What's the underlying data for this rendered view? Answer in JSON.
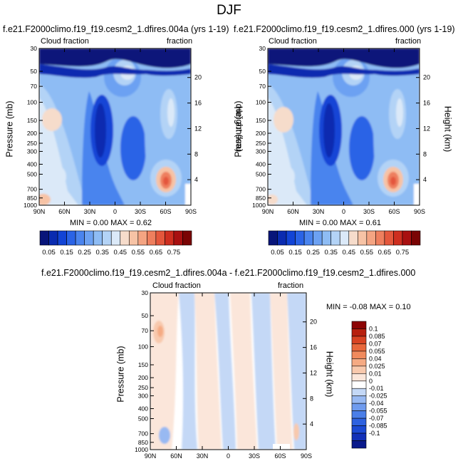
{
  "page": {
    "title": "DJF"
  },
  "colors": {
    "seq": [
      "#08157a",
      "#0a2bb0",
      "#1244d6",
      "#2a63e6",
      "#4a84ee",
      "#6ca1f2",
      "#8ebcf4",
      "#b3d3f6",
      "#dbe9f8",
      "#f6dccb",
      "#f7c3a5",
      "#f4a482",
      "#ee7f5e",
      "#e4573c",
      "#ce2e1f",
      "#a81010",
      "#7a0404"
    ],
    "diff": [
      "#0a1a8c",
      "#1230b8",
      "#1c4ad4",
      "#2e62e0",
      "#4a7ee8",
      "#6f9bee",
      "#98b9f2",
      "#c4d8f6",
      "#ffffff",
      "#fbe6da",
      "#f8c9ad",
      "#f5aa83",
      "#f08a5d",
      "#e8673b",
      "#d84322",
      "#b7200e",
      "#8c0404"
    ]
  },
  "panels": [
    {
      "id": "left",
      "title": "f.e21.F2000climo.f19_f19.cesm2_1.dfires.004a (yrs 1-19)",
      "variable": "Cloud fraction",
      "units": "fraction",
      "stats": "MIN =  0.00   MAX =  0.62",
      "ylabel": "Pressure (mb)",
      "ylabel2": "Height (km)"
    },
    {
      "id": "right",
      "title": "f.e21.F2000climo.f19_f19.cesm2_1.dfires.000 (yrs 1-19)",
      "variable": "Cloud fraction",
      "units": "fraction",
      "stats": "MIN =  0.00   MAX =  0.61",
      "ylabel": "Pressure (mb)",
      "ylabel2": "Height (km)"
    },
    {
      "id": "diff",
      "title": "f.e21.F2000climo.f19_f19.cesm2_1.dfires.004a - f.e21.F2000climo.f19_f19.cesm2_1.dfires.000",
      "variable": "Cloud fraction",
      "units": "fraction",
      "stats": "MIN = -0.08   MAX =  0.10",
      "ylabel": "Pressure (mb)",
      "ylabel2": "Height (km)"
    }
  ],
  "chart_data": [
    {
      "type": "heatmap",
      "title": "f.e21.F2000climo.f19_f19.cesm2_1.dfires.004a (yrs 1-19)",
      "variable": "Cloud fraction",
      "units": "fraction",
      "xlabel": "",
      "ylabel": "Pressure (mb)",
      "ylabel2": "Height (km)",
      "x_ticks": [
        "90N",
        "60N",
        "30N",
        "0",
        "30S",
        "60S",
        "90S"
      ],
      "y_ticks": [
        "30",
        "50",
        "70",
        "100",
        "150",
        "200",
        "250",
        "300",
        "400",
        "500",
        "700",
        "850",
        "1000"
      ],
      "y2_ticks": [
        "20",
        "16",
        "12",
        "8",
        "4"
      ],
      "min": 0.0,
      "max": 0.62,
      "colorbar_levels": [
        0.05,
        0.1,
        0.15,
        0.2,
        0.25,
        0.3,
        0.35,
        0.4,
        0.45,
        0.5,
        0.55,
        0.6,
        0.65,
        0.7,
        0.75
      ],
      "colorbar_labels": [
        "0.05",
        "0.15",
        "0.25",
        "0.35",
        "0.45",
        "0.55",
        "0.65",
        "0.75"
      ]
    },
    {
      "type": "heatmap",
      "title": "f.e21.F2000climo.f19_f19.cesm2_1.dfires.000 (yrs 1-19)",
      "variable": "Cloud fraction",
      "units": "fraction",
      "xlabel": "",
      "ylabel": "Pressure (mb)",
      "ylabel2": "Height (km)",
      "x_ticks": [
        "90N",
        "60N",
        "30N",
        "0",
        "30S",
        "60S",
        "90S"
      ],
      "y_ticks": [
        "30",
        "50",
        "70",
        "100",
        "150",
        "200",
        "250",
        "300",
        "400",
        "500",
        "700",
        "850",
        "1000"
      ],
      "y2_ticks": [
        "20",
        "16",
        "12",
        "8",
        "4"
      ],
      "min": 0.0,
      "max": 0.61,
      "colorbar_levels": [
        0.05,
        0.1,
        0.15,
        0.2,
        0.25,
        0.3,
        0.35,
        0.4,
        0.45,
        0.5,
        0.55,
        0.6,
        0.65,
        0.7,
        0.75
      ],
      "colorbar_labels": [
        "0.05",
        "0.15",
        "0.25",
        "0.35",
        "0.45",
        "0.55",
        "0.65",
        "0.75"
      ]
    },
    {
      "type": "heatmap",
      "title": "f.e21.F2000climo.f19_f19.cesm2_1.dfires.004a - f.e21.F2000climo.f19_f19.cesm2_1.dfires.000",
      "variable": "Cloud fraction",
      "units": "fraction",
      "xlabel": "",
      "ylabel": "Pressure (mb)",
      "ylabel2": "Height (km)",
      "x_ticks": [
        "90N",
        "60N",
        "30N",
        "0",
        "30S",
        "60S",
        "90S"
      ],
      "y_ticks": [
        "30",
        "50",
        "70",
        "100",
        "150",
        "200",
        "250",
        "300",
        "400",
        "500",
        "700",
        "850",
        "1000"
      ],
      "y2_ticks": [
        "20",
        "16",
        "12",
        "8",
        "4"
      ],
      "min": -0.08,
      "max": 0.1,
      "colorbar_levels": [
        -0.1,
        -0.085,
        -0.07,
        -0.055,
        -0.04,
        -0.025,
        -0.01,
        0,
        0.01,
        0.025,
        0.04,
        0.055,
        0.07,
        0.085,
        0.1
      ],
      "colorbar_labels": [
        "0.1",
        "0.085",
        "0.07",
        "0.055",
        "0.04",
        "0.025",
        "0.01",
        "0",
        "-0.01",
        "-0.025",
        "-0.04",
        "-0.055",
        "-0.07",
        "-0.085",
        "-0.1"
      ]
    }
  ]
}
